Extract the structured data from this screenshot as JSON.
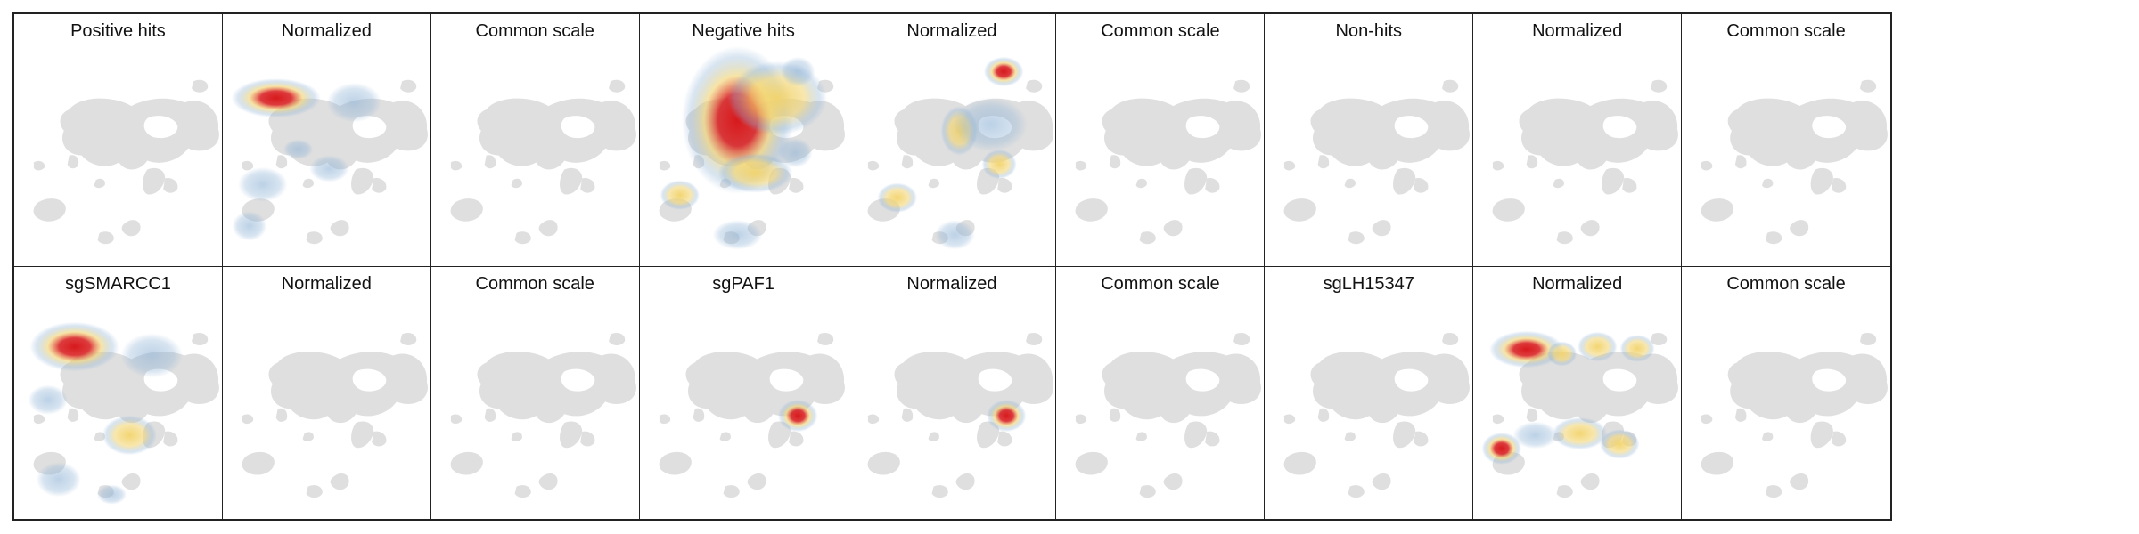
{
  "figure": {
    "panels": [
      {
        "title": "Positive hits",
        "heat": []
      },
      {
        "title": "Normalized",
        "heat": [
          {
            "x": 60,
            "y": 95,
            "rx": 36,
            "ry": 16,
            "level": "high"
          },
          {
            "x": 45,
            "y": 193,
            "rx": 20,
            "ry": 14,
            "level": "low"
          },
          {
            "x": 120,
            "y": 175,
            "rx": 16,
            "ry": 11,
            "level": "low"
          },
          {
            "x": 85,
            "y": 153,
            "rx": 12,
            "ry": 8,
            "level": "low"
          },
          {
            "x": 148,
            "y": 100,
            "rx": 22,
            "ry": 16,
            "level": "low"
          },
          {
            "x": 30,
            "y": 240,
            "rx": 14,
            "ry": 12,
            "level": "low"
          }
        ]
      },
      {
        "title": "Common scale",
        "heat": []
      },
      {
        "title": "Negative hits",
        "heat": [
          {
            "x": 110,
            "y": 120,
            "rx": 45,
            "ry": 60,
            "level": "high"
          },
          {
            "x": 155,
            "y": 95,
            "rx": 40,
            "ry": 30,
            "level": "medium"
          },
          {
            "x": 178,
            "y": 65,
            "rx": 14,
            "ry": 12,
            "level": "low"
          },
          {
            "x": 45,
            "y": 205,
            "rx": 16,
            "ry": 12,
            "level": "medium"
          },
          {
            "x": 130,
            "y": 180,
            "rx": 30,
            "ry": 16,
            "level": "medium"
          },
          {
            "x": 175,
            "y": 157,
            "rx": 14,
            "ry": 12,
            "level": "low"
          },
          {
            "x": 110,
            "y": 250,
            "rx": 20,
            "ry": 12,
            "level": "low"
          }
        ]
      },
      {
        "title": "Normalized",
        "heat": [
          {
            "x": 175,
            "y": 65,
            "rx": 16,
            "ry": 12,
            "level": "high"
          },
          {
            "x": 125,
            "y": 132,
            "rx": 15,
            "ry": 20,
            "level": "medium"
          },
          {
            "x": 160,
            "y": 125,
            "rx": 30,
            "ry": 22,
            "level": "low"
          },
          {
            "x": 55,
            "y": 208,
            "rx": 16,
            "ry": 12,
            "level": "medium"
          },
          {
            "x": 170,
            "y": 170,
            "rx": 14,
            "ry": 12,
            "level": "medium"
          },
          {
            "x": 120,
            "y": 250,
            "rx": 16,
            "ry": 12,
            "level": "low"
          }
        ]
      },
      {
        "title": "Common scale",
        "heat": []
      },
      {
        "title": "Non-hits",
        "heat": []
      },
      {
        "title": "Normalized",
        "heat": []
      },
      {
        "title": "Common scale",
        "heat": []
      },
      {
        "title": "sgSMARCC1",
        "heat": [
          {
            "x": 68,
            "y": 90,
            "rx": 36,
            "ry": 20,
            "level": "high"
          },
          {
            "x": 38,
            "y": 150,
            "rx": 16,
            "ry": 12,
            "level": "low"
          },
          {
            "x": 50,
            "y": 240,
            "rx": 18,
            "ry": 14,
            "level": "low"
          },
          {
            "x": 155,
            "y": 100,
            "rx": 25,
            "ry": 18,
            "level": "low"
          },
          {
            "x": 130,
            "y": 190,
            "rx": 22,
            "ry": 16,
            "level": "medium"
          },
          {
            "x": 110,
            "y": 257,
            "rx": 12,
            "ry": 8,
            "level": "low"
          }
        ]
      },
      {
        "title": "Normalized",
        "heat": []
      },
      {
        "title": "Common scale",
        "heat": []
      },
      {
        "title": "sgPAF1",
        "heat": [
          {
            "x": 178,
            "y": 168,
            "rx": 16,
            "ry": 13,
            "level": "high"
          }
        ]
      },
      {
        "title": "Normalized",
        "heat": [
          {
            "x": 178,
            "y": 168,
            "rx": 16,
            "ry": 13,
            "level": "high"
          }
        ]
      },
      {
        "title": "Common scale",
        "heat": []
      },
      {
        "title": "sgLH15347",
        "heat": []
      },
      {
        "title": "Normalized",
        "heat": [
          {
            "x": 60,
            "y": 93,
            "rx": 30,
            "ry": 15,
            "level": "high"
          },
          {
            "x": 100,
            "y": 98,
            "rx": 12,
            "ry": 10,
            "level": "medium"
          },
          {
            "x": 140,
            "y": 90,
            "rx": 16,
            "ry": 12,
            "level": "medium"
          },
          {
            "x": 185,
            "y": 92,
            "rx": 14,
            "ry": 11,
            "level": "medium"
          },
          {
            "x": 32,
            "y": 205,
            "rx": 16,
            "ry": 13,
            "level": "high"
          },
          {
            "x": 70,
            "y": 190,
            "rx": 18,
            "ry": 11,
            "level": "low"
          },
          {
            "x": 120,
            "y": 188,
            "rx": 22,
            "ry": 13,
            "level": "medium"
          },
          {
            "x": 165,
            "y": 200,
            "rx": 16,
            "ry": 12,
            "level": "medium"
          }
        ]
      },
      {
        "title": "Common scale",
        "heat": []
      }
    ],
    "colors": {
      "base": "#d9d9d9",
      "low": "#8fb3d6",
      "medium": "#f2d36b",
      "high": "#d7191c",
      "border": "#222222"
    }
  }
}
